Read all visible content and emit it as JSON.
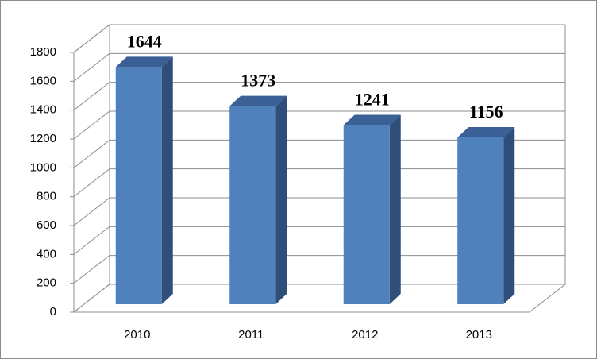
{
  "chart_data": {
    "type": "bar3d",
    "categories": [
      "2010",
      "2011",
      "2012",
      "2013"
    ],
    "values": [
      1644,
      1373,
      1241,
      1156
    ],
    "color": "#4f81bd",
    "ylim": [
      0,
      1800
    ],
    "yticks": [
      0,
      200,
      400,
      600,
      800,
      1000,
      1200,
      1400,
      1600,
      1800
    ],
    "grid": true
  }
}
